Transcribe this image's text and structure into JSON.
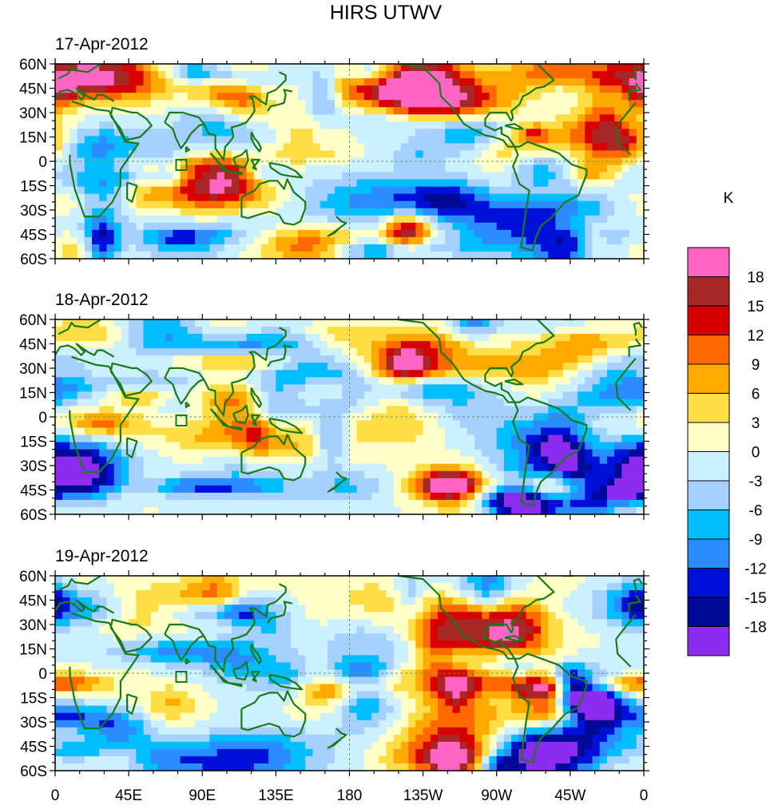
{
  "title": "HIRS UTWV",
  "panels": [
    {
      "date": "17-Apr-2012"
    },
    {
      "date": "18-Apr-2012"
    },
    {
      "date": "19-Apr-2012"
    }
  ],
  "lat_ticks": [
    "60N",
    "45N",
    "30N",
    "15N",
    "0",
    "15S",
    "30S",
    "45S",
    "60S"
  ],
  "lon_ticks": [
    "0",
    "45E",
    "90E",
    "135E",
    "180",
    "135W",
    "90W",
    "45W",
    "0"
  ],
  "colorbar": {
    "unit": "K",
    "labels": [
      "18",
      "15",
      "12",
      "9",
      "6",
      "3",
      "0",
      "-3",
      "-6",
      "-9",
      "-12",
      "-15",
      "-18"
    ],
    "colors": [
      "#ff66c4",
      "#a82828",
      "#d80000",
      "#ff6a00",
      "#ffaa00",
      "#ffdd44",
      "#ffffc8",
      "#cdf0ff",
      "#a5d0ff",
      "#00beff",
      "#2a8cff",
      "#0010d8",
      "#000a96",
      "#8c2cf0"
    ]
  },
  "map_colors": {
    "coast": "#1a7a1a",
    "dashed_lines": "#6a9a6a"
  }
}
